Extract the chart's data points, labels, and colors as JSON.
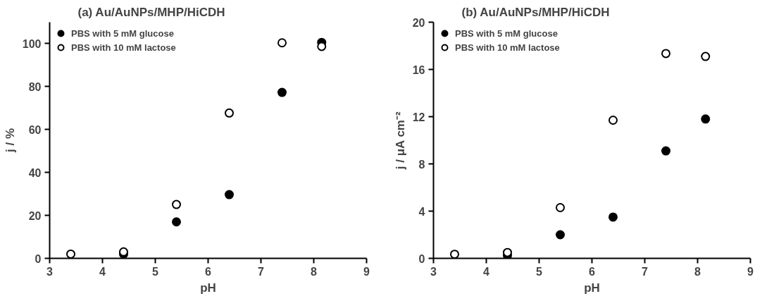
{
  "chart_data": [
    {
      "type": "scatter",
      "title": "(a) Au/AuNPs/MHP/HiCDH",
      "xlabel": "pH",
      "ylabel": "j / %",
      "x": [
        3.4,
        4.4,
        5.4,
        6.4,
        7.4,
        8.15
      ],
      "xlim": [
        3,
        9
      ],
      "xticks": [
        3,
        4,
        5,
        6,
        7,
        8,
        9
      ],
      "ylim": [
        0,
        110
      ],
      "yticks": [
        0,
        20,
        40,
        60,
        80,
        100
      ],
      "grid": false,
      "legend": "top left",
      "marker": "circle",
      "series": [
        {
          "name": "PBS with 5 mM glucose",
          "color": "#000000",
          "values": [
            null,
            2,
            17,
            29.7,
            77.3,
            100.6
          ]
        },
        {
          "name": "PBS with 10 mM lactose",
          "color": "#ffffff",
          "values": [
            2,
            3,
            25.1,
            67.7,
            100.4,
            98.7
          ]
        }
      ]
    },
    {
      "type": "scatter",
      "title": "(b) Au/AuNPs/MHP/HiCDH",
      "xlabel": "pH",
      "ylabel": "j / μA cm⁻²",
      "x": [
        3.4,
        4.4,
        5.4,
        6.4,
        7.4,
        8.15
      ],
      "xlim": [
        3,
        9
      ],
      "xticks": [
        3,
        4,
        5,
        6,
        7,
        8,
        9
      ],
      "ylim": [
        0,
        20
      ],
      "yticks": [
        0,
        4,
        8,
        12,
        16,
        20
      ],
      "grid": false,
      "legend": "top left",
      "marker": "circle",
      "series": [
        {
          "name": "PBS with 5 mM glucose",
          "color": "#000000",
          "values": [
            null,
            0.25,
            2.0,
            3.5,
            9.1,
            11.8
          ]
        },
        {
          "name": "PBS with 10 mM lactose",
          "color": "#ffffff",
          "values": [
            0.35,
            0.5,
            4.3,
            11.7,
            17.35,
            17.1
          ]
        }
      ]
    }
  ]
}
